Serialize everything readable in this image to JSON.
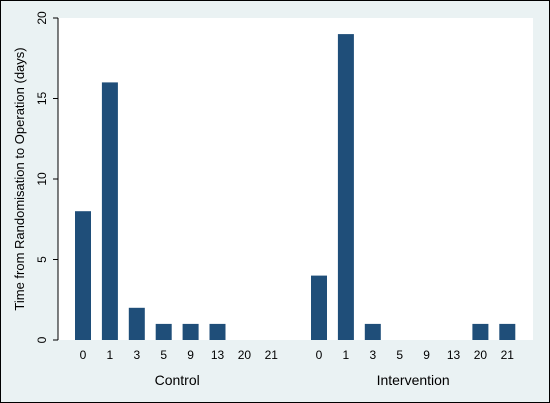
{
  "chart_data": {
    "type": "bar",
    "ylabel": "Time from Randomisation to Operation (days)",
    "ylim": [
      0,
      20
    ],
    "yticks": [
      0,
      5,
      10,
      15,
      20
    ],
    "grid": false,
    "colors": {
      "bar": "#1f4e79",
      "plot_bg": "#ffffff",
      "outer_bg": "#eaf2f3"
    },
    "groups": [
      {
        "name": "Control",
        "categories": [
          "0",
          "1",
          "3",
          "5",
          "9",
          "13",
          "20",
          "21"
        ],
        "values": [
          8,
          16,
          2,
          1,
          1,
          1,
          0,
          0
        ]
      },
      {
        "name": "Intervention",
        "categories": [
          "0",
          "1",
          "3",
          "5",
          "9",
          "13",
          "20",
          "21"
        ],
        "values": [
          4,
          19,
          1,
          0,
          0,
          0,
          1,
          1
        ]
      }
    ]
  }
}
